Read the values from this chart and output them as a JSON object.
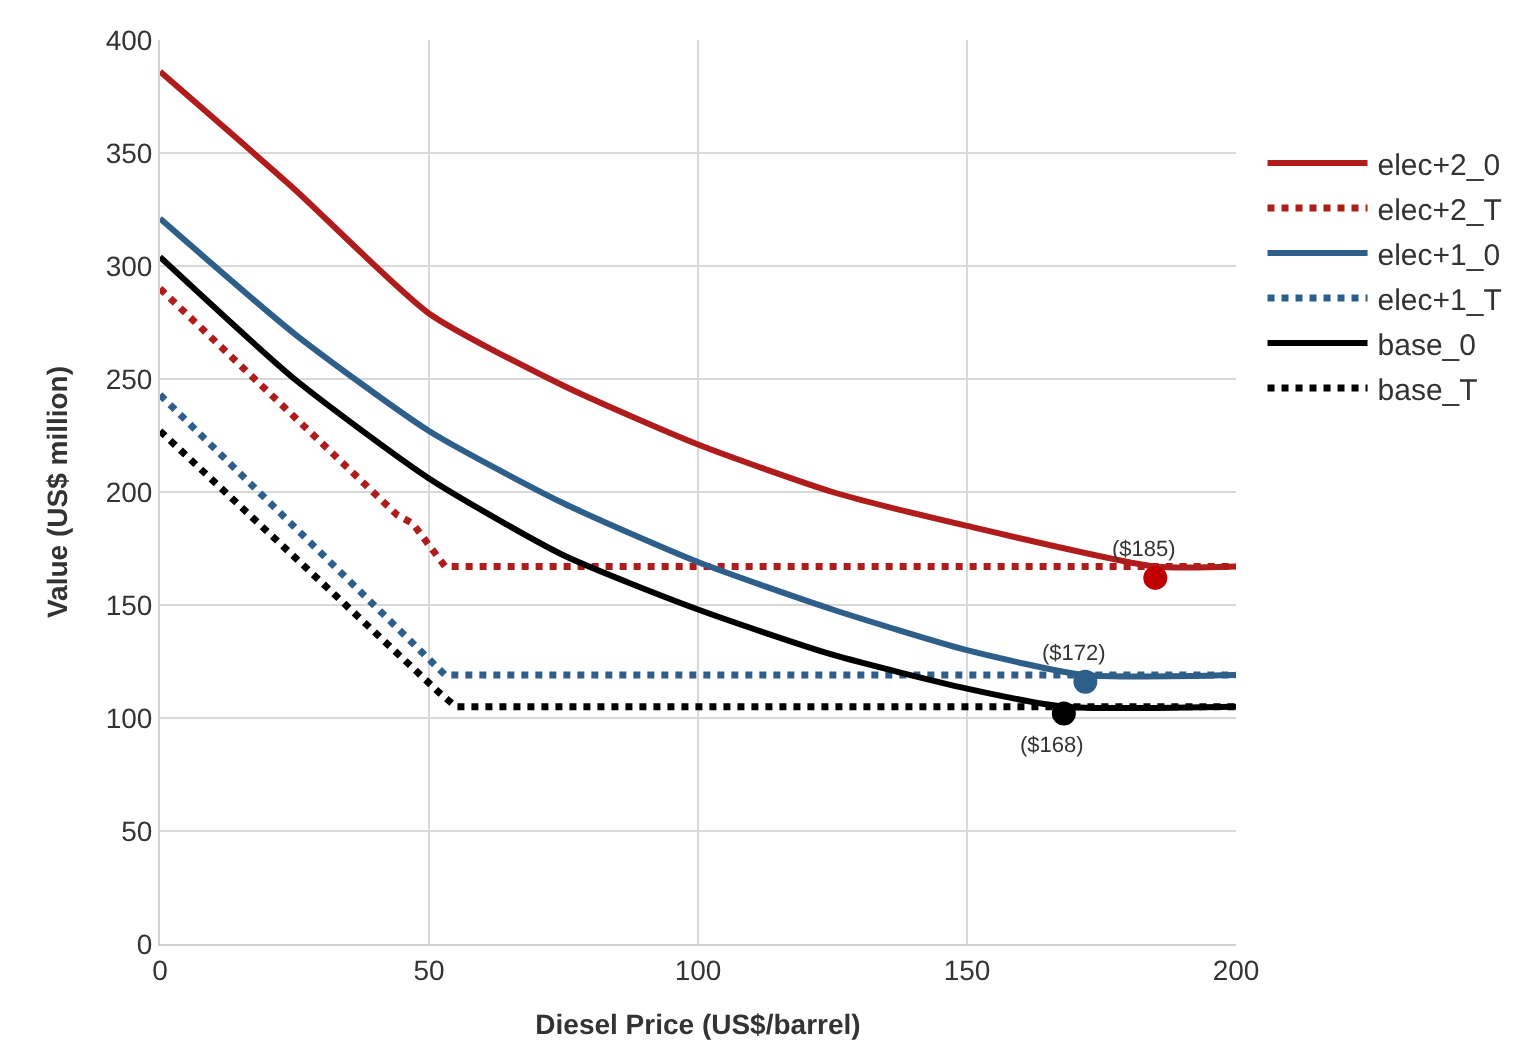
{
  "chart_data": {
    "type": "line",
    "xlabel": "Diesel Price (US$/barrel)",
    "ylabel": "Value (US$ million)",
    "xlim": [
      0,
      200
    ],
    "ylim": [
      0,
      400
    ],
    "xticks": [
      0,
      50,
      100,
      150,
      200
    ],
    "yticks": [
      0,
      50,
      100,
      150,
      200,
      250,
      300,
      350,
      400
    ],
    "grid": true,
    "legend": "right",
    "marker": "none",
    "series": [
      {
        "name": "elec+2_0",
        "color": "#b01c1c",
        "line_style": "solid",
        "x": [
          0,
          25,
          50,
          75,
          100,
          125,
          150,
          185,
          200
        ],
        "values": [
          386,
          334,
          279,
          247,
          221,
          200,
          185,
          167,
          167
        ]
      },
      {
        "name": "elec+2_T",
        "color": "#b01c1c",
        "line_style": "dotted",
        "x": [
          0,
          44,
          47,
          53,
          200
        ],
        "values": [
          290,
          190,
          186,
          167,
          167
        ]
      },
      {
        "name": "elec+1_0",
        "color": "#2e5e8a",
        "line_style": "solid",
        "x": [
          0,
          25,
          50,
          75,
          100,
          125,
          150,
          172,
          200
        ],
        "values": [
          321,
          270,
          227,
          195,
          169,
          148,
          130,
          119,
          119
        ]
      },
      {
        "name": "elec+1_T",
        "color": "#2e5e8a",
        "line_style": "dotted",
        "x": [
          0,
          53,
          200
        ],
        "values": [
          243,
          119,
          119
        ]
      },
      {
        "name": "base_0",
        "color": "#000000",
        "line_style": "solid",
        "x": [
          0,
          25,
          50,
          75,
          100,
          125,
          150,
          168,
          200
        ],
        "values": [
          304,
          250,
          206,
          172,
          148,
          128,
          113,
          105,
          105
        ]
      },
      {
        "name": "base_T",
        "color": "#000000",
        "line_style": "dotted",
        "x": [
          0,
          52,
          55,
          200
        ],
        "values": [
          227,
          111,
          105,
          105
        ]
      },
      {
        "type": "scatter",
        "marker": "circle",
        "x": [
          185
        ],
        "values": [
          162
        ],
        "color": "#c00000"
      },
      {
        "type": "scatter",
        "marker": "circle",
        "x": [
          172
        ],
        "values": [
          116
        ],
        "color": "#2e5e8a"
      },
      {
        "type": "scatter",
        "marker": "circle",
        "x": [
          168
        ],
        "values": [
          102
        ],
        "color": "#000000"
      }
    ],
    "annotations": [
      {
        "text": "($185)",
        "x": 185,
        "y": 162
      },
      {
        "text": "($172)",
        "x": 172,
        "y": 116
      },
      {
        "text": "($168)",
        "x": 168,
        "y": 102
      }
    ]
  }
}
